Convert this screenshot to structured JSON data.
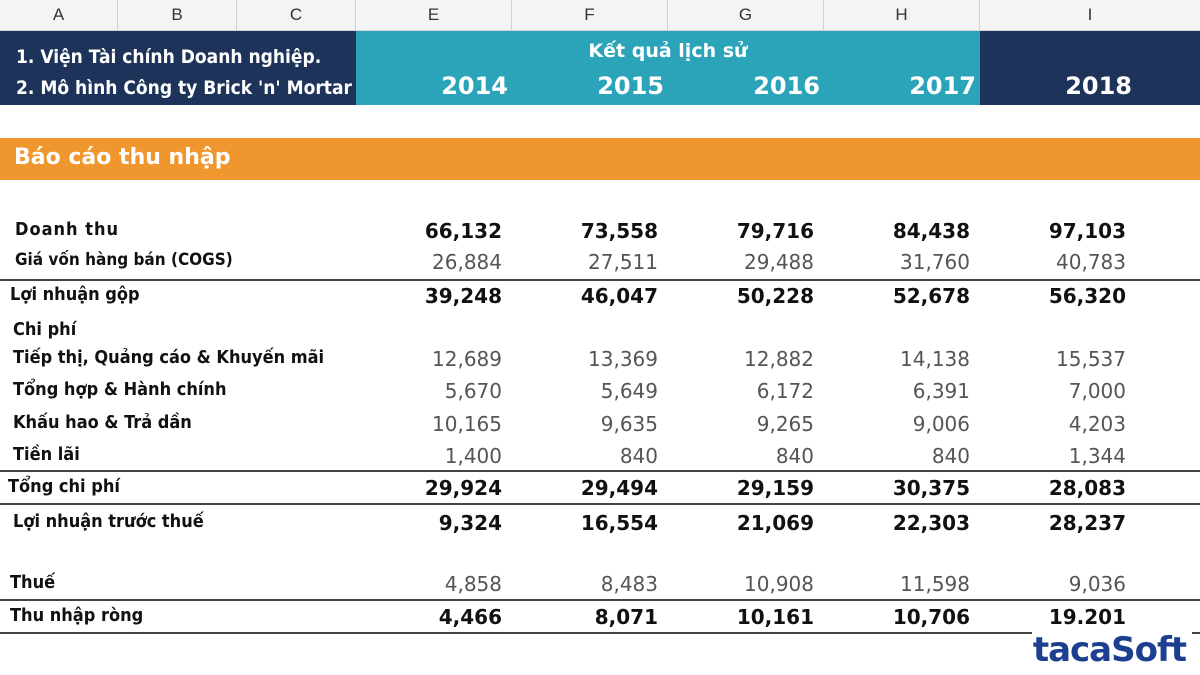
{
  "columns": [
    "A",
    "B",
    "C",
    "E",
    "F",
    "G",
    "H",
    "I"
  ],
  "header": {
    "note1": "1. Viện Tài chính Doanh nghiệp.",
    "note2": "2. Mô hình Công ty Brick 'n' Mortar",
    "historical_label": "Kết quả lịch sử",
    "years": [
      "2014",
      "2015",
      "2016",
      "2017",
      "2018"
    ]
  },
  "section_title": "Báo cáo thu nhập",
  "rows": {
    "revenue": {
      "label": "Doanh thu",
      "values": [
        "66,132",
        "73,558",
        "79,716",
        "84,438",
        "97,103"
      ]
    },
    "cogs": {
      "label": "Giá vốn hàng bán (COGS)",
      "values": [
        "26,884",
        "27,511",
        "29,488",
        "31,760",
        "40,783"
      ]
    },
    "gross_profit": {
      "label": "Lợi nhuận gộp",
      "values": [
        "39,248",
        "46,047",
        "50,228",
        "52,678",
        "56,320"
      ]
    },
    "expenses_header": {
      "label": "Chi phí"
    },
    "marketing": {
      "label": "Tiếp thị, Quảng cáo & Khuyến mãi",
      "values": [
        "12,689",
        "13,369",
        "12,882",
        "14,138",
        "15,537"
      ]
    },
    "admin": {
      "label": "Tổng hợp & Hành chính",
      "values": [
        "5,670",
        "5,649",
        "6,172",
        "6,391",
        "7,000"
      ]
    },
    "depreciation": {
      "label": "Khấu hao & Trả dần",
      "values": [
        "10,165",
        "9,635",
        "9,265",
        "9,006",
        "4,203"
      ]
    },
    "interest": {
      "label": "Tiền lãi",
      "values": [
        "1,400",
        "840",
        "840",
        "840",
        "1,344"
      ]
    },
    "total_expenses": {
      "label": "Tổng chi phí",
      "values": [
        "29,924",
        "29,494",
        "29,159",
        "30,375",
        "28,083"
      ]
    },
    "ebt": {
      "label": "Lợi nhuận trước thuế",
      "values": [
        "9,324",
        "16,554",
        "21,069",
        "22,303",
        "28,237"
      ]
    },
    "tax": {
      "label": "Thuế",
      "values": [
        "4,858",
        "8,483",
        "10,908",
        "11,598",
        "9,036"
      ]
    },
    "net_income": {
      "label": "Thu nhập ròng",
      "values": [
        "4,466",
        "8,071",
        "10,161",
        "10,706",
        "19.201"
      ]
    }
  },
  "logo": "tacaSoft"
}
